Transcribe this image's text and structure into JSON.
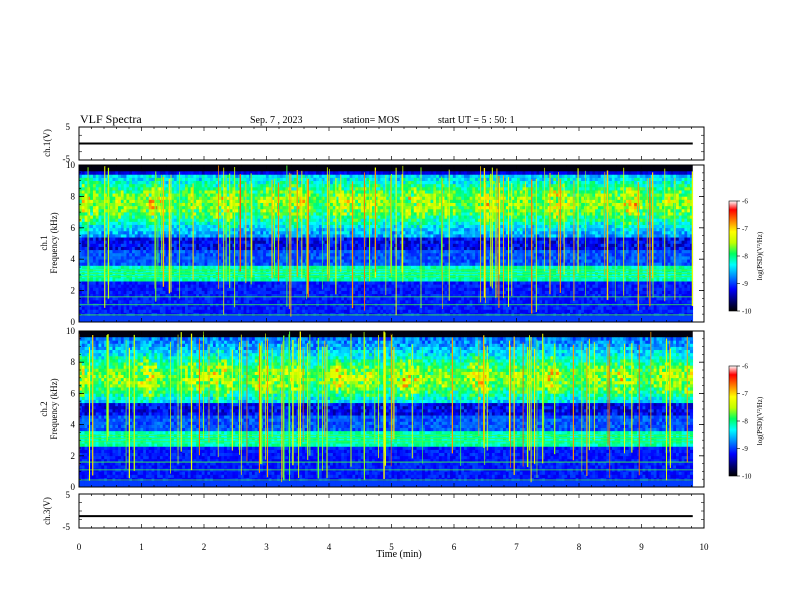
{
  "header": {
    "title": "VLF Spectra",
    "date": "Sep. 7 , 2023",
    "station": "station= MOS",
    "start": "start UT =  5 : 50: 1"
  },
  "colors": {
    "spectrum": [
      "#000000",
      "#00008b",
      "#0000ff",
      "#00a0ff",
      "#00ffff",
      "#00ff80",
      "#c0ff00",
      "#ffff00",
      "#ff8000",
      "#ff0000",
      "#ffffff"
    ],
    "axis": "#000000"
  },
  "chart_data": [
    {
      "type": "line",
      "panel": "ch1-waveform",
      "ylabel": "ch.1(V)",
      "ylim": [
        -5,
        5
      ],
      "yticks": [
        "5",
        "-5"
      ],
      "x": [
        0,
        10
      ],
      "y": [
        0,
        0
      ]
    },
    {
      "type": "heatmap",
      "panel": "ch1-spectrogram",
      "ylabel_1": "ch.1",
      "ylabel_2": "Frequency (kHz)",
      "ylim": [
        0,
        10
      ],
      "yticks": [
        "0",
        "2",
        "4",
        "6",
        "8",
        "10"
      ],
      "colorbar": {
        "label": "log(PSD)(V²/Hz)",
        "range": [
          -10,
          -6
        ],
        "ticks": [
          "-6",
          "-7",
          "-8",
          "-9",
          "-10"
        ]
      }
    },
    {
      "type": "heatmap",
      "panel": "ch2-spectrogram",
      "ylabel_1": "ch.2",
      "ylabel_2": "Frequency (kHz)",
      "ylim": [
        0,
        10
      ],
      "yticks": [
        "0",
        "2",
        "4",
        "6",
        "8",
        "10"
      ],
      "colorbar": {
        "label": "log(PSD)(V²/Hz)",
        "range": [
          -10,
          -6
        ],
        "ticks": [
          "-6",
          "-7",
          "-8",
          "-9",
          "-10"
        ]
      }
    },
    {
      "type": "line",
      "panel": "ch3-waveform",
      "ylabel": "ch.3(V)",
      "ylim": [
        -5,
        5
      ],
      "yticks": [
        "5",
        "-5"
      ],
      "x": [
        0,
        10
      ],
      "y": [
        -1.5,
        -1.5
      ]
    }
  ],
  "xaxis": {
    "label": "Time (min)",
    "xlim": [
      0,
      10
    ],
    "ticks": [
      "0",
      "1",
      "2",
      "3",
      "4",
      "5",
      "6",
      "7",
      "8",
      "9",
      "10"
    ]
  }
}
